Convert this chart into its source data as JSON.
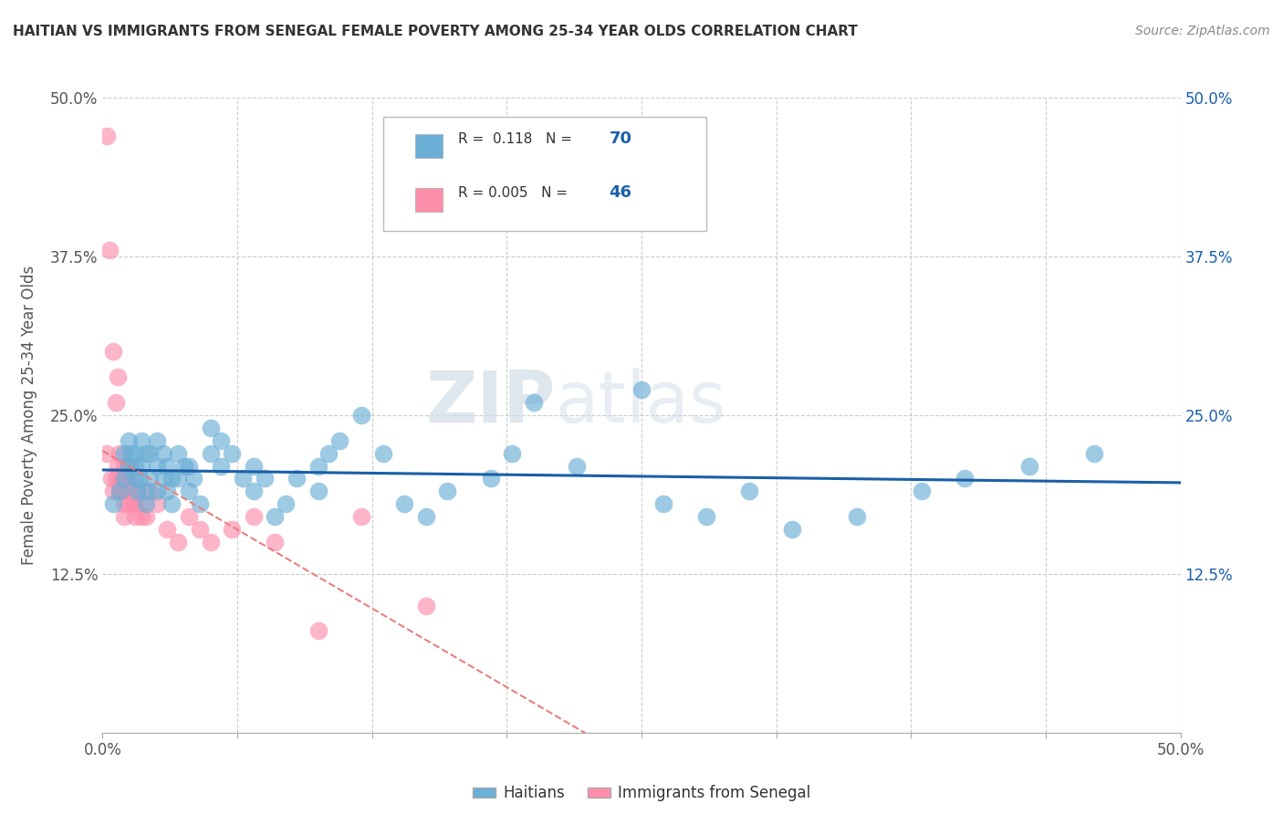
{
  "title": "HAITIAN VS IMMIGRANTS FROM SENEGAL FEMALE POVERTY AMONG 25-34 YEAR OLDS CORRELATION CHART",
  "source": "Source: ZipAtlas.com",
  "ylabel": "Female Poverty Among 25-34 Year Olds",
  "xlim": [
    0.0,
    0.5
  ],
  "ylim": [
    0.0,
    0.5
  ],
  "xticks": [
    0.0,
    0.0625,
    0.125,
    0.1875,
    0.25,
    0.3125,
    0.375,
    0.4375,
    0.5
  ],
  "xticklabels_show": [
    "0.0%",
    "",
    "",
    "",
    "",
    "",
    "",
    "",
    "50.0%"
  ],
  "yticks": [
    0.0,
    0.125,
    0.25,
    0.375,
    0.5
  ],
  "ytick_left_labels": [
    "",
    "12.5%",
    "25.0%",
    "37.5%",
    "50.0%"
  ],
  "ytick_right_labels": [
    "",
    "12.5%",
    "25.0%",
    "37.5%",
    "50.0%"
  ],
  "haitian_color": "#6baed6",
  "senegal_color": "#fc8eac",
  "haitian_line_color": "#1a5fa8",
  "senegal_line_color": "#e88080",
  "haitian_R": 0.118,
  "haitian_N": 70,
  "senegal_R": 0.005,
  "senegal_N": 46,
  "legend_label_1": "Haitians",
  "legend_label_2": "Immigrants from Senegal",
  "watermark_zip": "ZIP",
  "watermark_atlas": "atlas",
  "background_color": "#ffffff",
  "grid_color": "#cccccc",
  "haitian_x": [
    0.005,
    0.008,
    0.01,
    0.01,
    0.012,
    0.012,
    0.013,
    0.015,
    0.015,
    0.015,
    0.016,
    0.017,
    0.018,
    0.018,
    0.02,
    0.02,
    0.02,
    0.022,
    0.022,
    0.025,
    0.025,
    0.025,
    0.028,
    0.028,
    0.03,
    0.03,
    0.032,
    0.032,
    0.035,
    0.035,
    0.038,
    0.04,
    0.04,
    0.042,
    0.045,
    0.05,
    0.05,
    0.055,
    0.055,
    0.06,
    0.065,
    0.07,
    0.07,
    0.075,
    0.08,
    0.085,
    0.09,
    0.1,
    0.1,
    0.105,
    0.11,
    0.12,
    0.13,
    0.14,
    0.15,
    0.16,
    0.18,
    0.19,
    0.2,
    0.22,
    0.25,
    0.26,
    0.28,
    0.3,
    0.32,
    0.35,
    0.38,
    0.4,
    0.43,
    0.46
  ],
  "haitian_y": [
    0.18,
    0.19,
    0.2,
    0.22,
    0.21,
    0.23,
    0.22,
    0.2,
    0.21,
    0.22,
    0.19,
    0.2,
    0.21,
    0.23,
    0.18,
    0.19,
    0.22,
    0.2,
    0.22,
    0.19,
    0.21,
    0.23,
    0.2,
    0.22,
    0.19,
    0.21,
    0.18,
    0.2,
    0.2,
    0.22,
    0.21,
    0.19,
    0.21,
    0.2,
    0.18,
    0.22,
    0.24,
    0.21,
    0.23,
    0.22,
    0.2,
    0.19,
    0.21,
    0.2,
    0.17,
    0.18,
    0.2,
    0.19,
    0.21,
    0.22,
    0.23,
    0.25,
    0.22,
    0.18,
    0.17,
    0.19,
    0.2,
    0.22,
    0.26,
    0.21,
    0.27,
    0.18,
    0.17,
    0.19,
    0.16,
    0.17,
    0.19,
    0.2,
    0.21,
    0.22
  ],
  "senegal_x": [
    0.002,
    0.002,
    0.003,
    0.004,
    0.005,
    0.005,
    0.006,
    0.006,
    0.007,
    0.007,
    0.008,
    0.008,
    0.008,
    0.009,
    0.009,
    0.01,
    0.01,
    0.01,
    0.01,
    0.011,
    0.011,
    0.012,
    0.012,
    0.012,
    0.013,
    0.013,
    0.014,
    0.015,
    0.015,
    0.016,
    0.017,
    0.018,
    0.02,
    0.022,
    0.025,
    0.03,
    0.035,
    0.04,
    0.045,
    0.05,
    0.06,
    0.07,
    0.08,
    0.1,
    0.12,
    0.15
  ],
  "senegal_y": [
    0.47,
    0.22,
    0.38,
    0.2,
    0.3,
    0.19,
    0.26,
    0.2,
    0.28,
    0.21,
    0.22,
    0.2,
    0.19,
    0.2,
    0.19,
    0.21,
    0.2,
    0.18,
    0.17,
    0.2,
    0.19,
    0.21,
    0.19,
    0.18,
    0.2,
    0.19,
    0.18,
    0.18,
    0.17,
    0.19,
    0.18,
    0.17,
    0.17,
    0.19,
    0.18,
    0.16,
    0.15,
    0.17,
    0.16,
    0.15,
    0.16,
    0.17,
    0.15,
    0.08,
    0.17,
    0.1
  ]
}
